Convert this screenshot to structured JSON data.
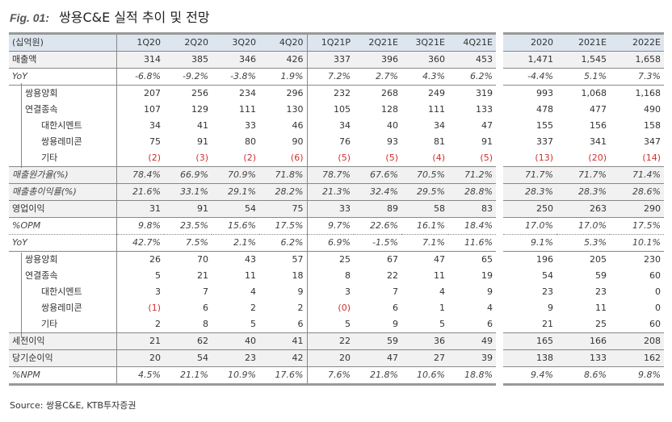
{
  "title": {
    "fig": "Fig. 01:",
    "text": "쌍용C&E 실적 추이 및 전망"
  },
  "header": [
    "(십억원)",
    "1Q20",
    "2Q20",
    "3Q20",
    "4Q20",
    "1Q21P",
    "2Q21E",
    "3Q21E",
    "4Q21E",
    "2020",
    "2021E",
    "2022E"
  ],
  "rows": [
    {
      "label": "매출액",
      "indent": 0,
      "style": "shade bb",
      "values": [
        "314",
        "385",
        "346",
        "426",
        "337",
        "396",
        "360",
        "453",
        "1,471",
        "1,545",
        "1,658"
      ]
    },
    {
      "label": "YoY",
      "indent": 0,
      "style": "it bb",
      "values": [
        "-6.8%",
        "-9.2%",
        "-3.8%",
        "1.9%",
        "7.2%",
        "2.7%",
        "4.3%",
        "6.2%",
        "-4.4%",
        "5.1%",
        "7.3%"
      ]
    },
    {
      "label": "쌍용양회",
      "indent": 1,
      "style": "",
      "values": [
        "207",
        "256",
        "234",
        "296",
        "232",
        "268",
        "249",
        "319",
        "993",
        "1,068",
        "1,168"
      ]
    },
    {
      "label": "연결종속",
      "indent": 1,
      "style": "",
      "values": [
        "107",
        "129",
        "111",
        "130",
        "105",
        "128",
        "111",
        "133",
        "478",
        "477",
        "490"
      ]
    },
    {
      "label": "대한시멘트",
      "indent": 2,
      "style": "",
      "values": [
        "34",
        "41",
        "33",
        "46",
        "34",
        "40",
        "34",
        "47",
        "155",
        "156",
        "158"
      ]
    },
    {
      "label": "쌍용레미콘",
      "indent": 2,
      "style": "",
      "values": [
        "75",
        "91",
        "80",
        "90",
        "76",
        "93",
        "81",
        "91",
        "337",
        "341",
        "347"
      ]
    },
    {
      "label": "기타",
      "indent": 2,
      "style": "bb",
      "values": [
        "(2)",
        "(3)",
        "(2)",
        "(6)",
        "(5)",
        "(5)",
        "(4)",
        "(5)",
        "(13)",
        "(20)",
        "(14)"
      ]
    },
    {
      "label": "매출원가율(%)",
      "indent": 0,
      "style": "shade bb it",
      "values": [
        "78.4%",
        "66.9%",
        "70.9%",
        "71.8%",
        "78.7%",
        "67.6%",
        "70.5%",
        "71.2%",
        "71.7%",
        "71.7%",
        "71.4%"
      ]
    },
    {
      "label": "매출총이익률(%)",
      "indent": 0,
      "style": "shade bb it",
      "values": [
        "21.6%",
        "33.1%",
        "29.1%",
        "28.2%",
        "21.3%",
        "32.4%",
        "29.5%",
        "28.8%",
        "28.3%",
        "28.3%",
        "28.6%"
      ]
    },
    {
      "label": "영업이익",
      "indent": 0,
      "style": "shade bb",
      "values": [
        "31",
        "91",
        "54",
        "75",
        "33",
        "89",
        "58",
        "83",
        "250",
        "263",
        "290"
      ]
    },
    {
      "label": "%OPM",
      "indent": 0,
      "style": "it dot",
      "values": [
        "9.8%",
        "23.5%",
        "15.6%",
        "17.5%",
        "9.7%",
        "22.6%",
        "16.1%",
        "18.4%",
        "17.0%",
        "17.0%",
        "17.5%"
      ]
    },
    {
      "label": "YoY",
      "indent": 0,
      "style": "it bb",
      "values": [
        "42.7%",
        "7.5%",
        "2.1%",
        "6.2%",
        "6.9%",
        "-1.5%",
        "7.1%",
        "11.6%",
        "9.1%",
        "5.3%",
        "10.1%"
      ]
    },
    {
      "label": "쌍용양회",
      "indent": 1,
      "style": "",
      "values": [
        "26",
        "70",
        "43",
        "57",
        "25",
        "67",
        "47",
        "65",
        "196",
        "205",
        "230"
      ]
    },
    {
      "label": "연결종속",
      "indent": 1,
      "style": "",
      "values": [
        "5",
        "21",
        "11",
        "18",
        "8",
        "22",
        "11",
        "19",
        "54",
        "59",
        "60"
      ]
    },
    {
      "label": "대한시멘트",
      "indent": 2,
      "style": "",
      "values": [
        "3",
        "7",
        "4",
        "9",
        "3",
        "7",
        "4",
        "9",
        "23",
        "23",
        "0"
      ]
    },
    {
      "label": "쌍용레미콘",
      "indent": 2,
      "style": "",
      "values": [
        "(1)",
        "6",
        "2",
        "2",
        "(0)",
        "6",
        "1",
        "4",
        "9",
        "11",
        "0"
      ]
    },
    {
      "label": "기타",
      "indent": 2,
      "style": "bb",
      "values": [
        "2",
        "8",
        "5",
        "6",
        "5",
        "9",
        "5",
        "6",
        "21",
        "25",
        "60"
      ]
    },
    {
      "label": "세전이익",
      "indent": 0,
      "style": "shade bb",
      "values": [
        "21",
        "62",
        "40",
        "41",
        "22",
        "59",
        "36",
        "49",
        "165",
        "166",
        "208"
      ]
    },
    {
      "label": "당기순이익",
      "indent": 0,
      "style": "shade bb",
      "values": [
        "20",
        "54",
        "23",
        "42",
        "20",
        "47",
        "27",
        "39",
        "138",
        "133",
        "162"
      ]
    },
    {
      "label": "%NPM",
      "indent": 0,
      "style": "it last",
      "values": [
        "4.5%",
        "21.1%",
        "10.9%",
        "17.6%",
        "7.6%",
        "21.8%",
        "10.6%",
        "18.8%",
        "9.4%",
        "8.6%",
        "9.8%"
      ]
    }
  ],
  "source": "Source:  쌍용C&E, KTB투자증권",
  "colors": {
    "negative": "#d03030",
    "header_bg": "#dde5ee",
    "shade_bg": "#f1f1f1"
  }
}
